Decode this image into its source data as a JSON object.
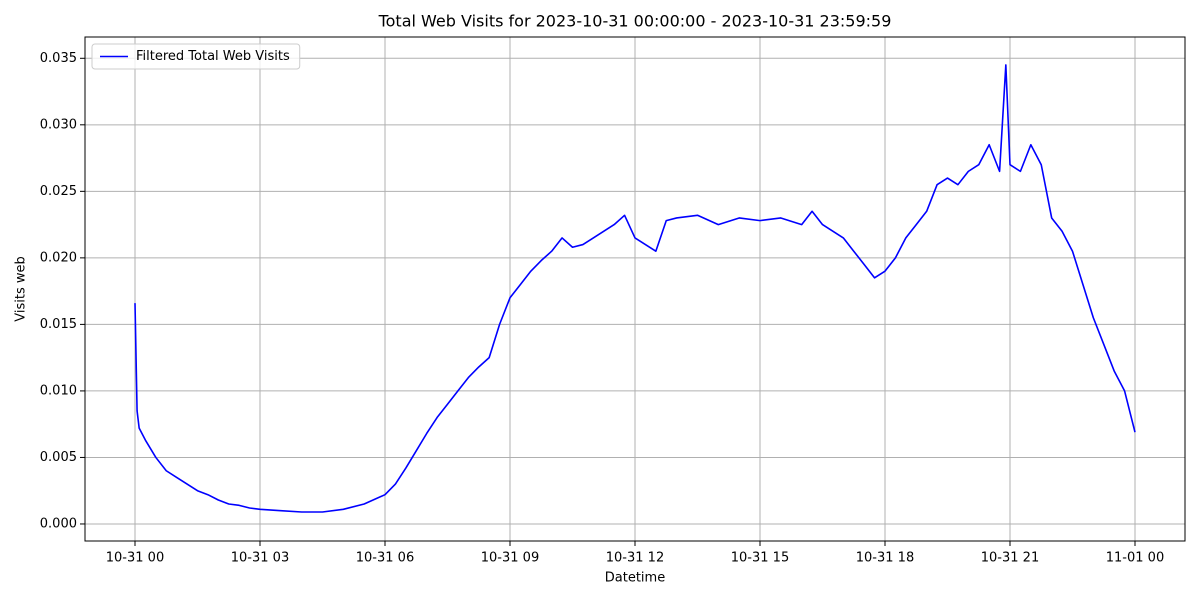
{
  "chart_data": {
    "type": "line",
    "title": "Total Web Visits for 2023-10-31 00:00:00 - 2023-10-31 23:59:59",
    "xlabel": "Datetime",
    "ylabel": "Visits web",
    "x": [
      0,
      0.05,
      0.1,
      0.25,
      0.5,
      0.75,
      1,
      1.25,
      1.5,
      1.75,
      2,
      2.25,
      2.5,
      2.75,
      3,
      3.5,
      4,
      4.5,
      5,
      5.5,
      6,
      6.25,
      6.5,
      6.75,
      7,
      7.25,
      7.5,
      7.75,
      8,
      8.25,
      8.5,
      8.75,
      9,
      9.25,
      9.5,
      9.75,
      10,
      10.25,
      10.5,
      10.75,
      11,
      11.5,
      11.75,
      12,
      12.25,
      12.5,
      12.75,
      13,
      13.5,
      14,
      14.5,
      15,
      15.5,
      16,
      16.25,
      16.5,
      17,
      17.25,
      17.5,
      17.75,
      18,
      18.25,
      18.5,
      18.75,
      19,
      19.25,
      19.5,
      19.75,
      20,
      20.25,
      20.5,
      20.75,
      20.9,
      21,
      21.25,
      21.5,
      21.75,
      22,
      22.25,
      22.5,
      22.75,
      23,
      23.25,
      23.5,
      23.75,
      24
    ],
    "series": [
      {
        "name": "Filtered Total Web Visits",
        "color": "#0000ff",
        "values": [
          0.0166,
          0.0085,
          0.0072,
          0.0063,
          0.005,
          0.004,
          0.0035,
          0.003,
          0.0025,
          0.0022,
          0.0018,
          0.0015,
          0.0014,
          0.0012,
          0.0011,
          0.001,
          0.0009,
          0.0009,
          0.0011,
          0.0015,
          0.0022,
          0.003,
          0.0042,
          0.0055,
          0.0068,
          0.008,
          0.009,
          0.01,
          0.011,
          0.0118,
          0.0125,
          0.015,
          0.017,
          0.018,
          0.019,
          0.0198,
          0.0205,
          0.0215,
          0.0208,
          0.021,
          0.0215,
          0.0225,
          0.0232,
          0.0215,
          0.021,
          0.0205,
          0.0228,
          0.023,
          0.0232,
          0.0225,
          0.023,
          0.0228,
          0.023,
          0.0225,
          0.0235,
          0.0225,
          0.0215,
          0.0205,
          0.0195,
          0.0185,
          0.019,
          0.02,
          0.0215,
          0.0225,
          0.0235,
          0.0255,
          0.026,
          0.0255,
          0.0265,
          0.027,
          0.0285,
          0.0265,
          0.0345,
          0.027,
          0.0265,
          0.0285,
          0.027,
          0.023,
          0.022,
          0.0205,
          0.018,
          0.0155,
          0.0135,
          0.0115,
          0.01,
          0.0069
        ]
      }
    ],
    "xlim": [
      -1.2,
      25.2
    ],
    "ylim": [
      -0.00128,
      0.0366
    ],
    "xticks": [
      {
        "value": 0,
        "label": "10-31 00"
      },
      {
        "value": 3,
        "label": "10-31 03"
      },
      {
        "value": 6,
        "label": "10-31 06"
      },
      {
        "value": 9,
        "label": "10-31 09"
      },
      {
        "value": 12,
        "label": "10-31 12"
      },
      {
        "value": 15,
        "label": "10-31 15"
      },
      {
        "value": 18,
        "label": "10-31 18"
      },
      {
        "value": 21,
        "label": "10-31 21"
      },
      {
        "value": 24,
        "label": "11-01 00"
      }
    ],
    "yticks": [
      {
        "value": 0,
        "label": "0.000"
      },
      {
        "value": 0.005,
        "label": "0.005"
      },
      {
        "value": 0.01,
        "label": "0.010"
      },
      {
        "value": 0.015,
        "label": "0.015"
      },
      {
        "value": 0.02,
        "label": "0.020"
      },
      {
        "value": 0.025,
        "label": "0.025"
      },
      {
        "value": 0.03,
        "label": "0.030"
      },
      {
        "value": 0.035,
        "label": "0.035"
      }
    ],
    "grid": true,
    "legend": "upper-left"
  }
}
